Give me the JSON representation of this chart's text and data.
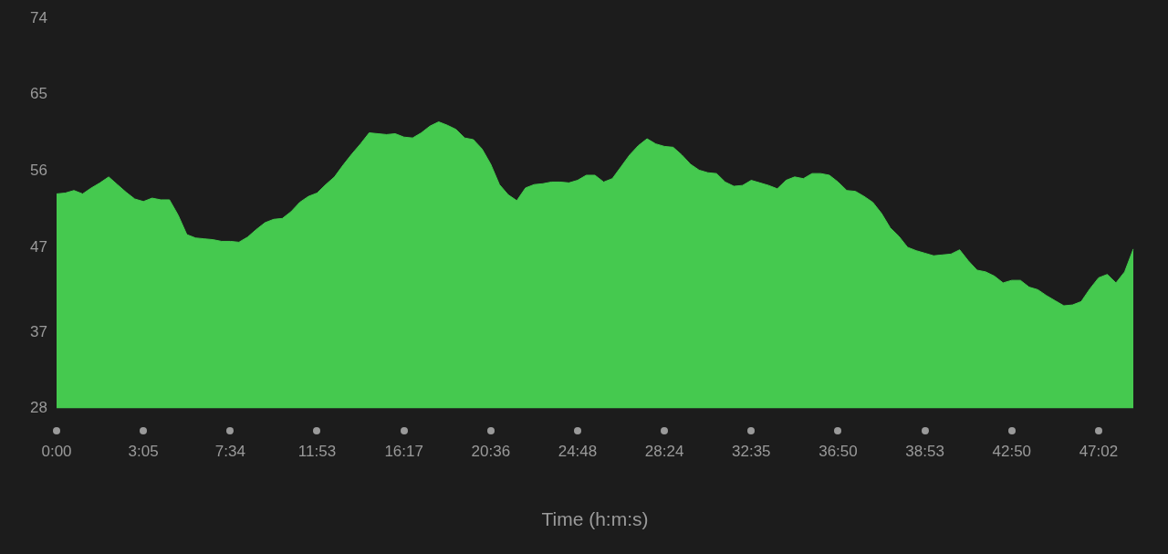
{
  "chart_data": {
    "type": "area",
    "xlabel": "Time (h:m:s)",
    "legend": false,
    "grid": false,
    "marker": "none",
    "categories": [
      "0:00",
      null,
      null,
      null,
      null,
      null,
      null,
      null,
      null,
      null,
      "3:05",
      null,
      null,
      null,
      null,
      null,
      null,
      null,
      null,
      null,
      "7:34",
      null,
      null,
      null,
      null,
      null,
      null,
      null,
      null,
      null,
      "11:53",
      null,
      null,
      null,
      null,
      null,
      null,
      null,
      null,
      null,
      "16:17",
      null,
      null,
      null,
      null,
      null,
      null,
      null,
      null,
      null,
      "20:36",
      null,
      null,
      null,
      null,
      null,
      null,
      null,
      null,
      null,
      "24:48",
      null,
      null,
      null,
      null,
      null,
      null,
      null,
      null,
      null,
      "28:24",
      null,
      null,
      null,
      null,
      null,
      null,
      null,
      null,
      null,
      "32:35",
      null,
      null,
      null,
      null,
      null,
      null,
      null,
      null,
      null,
      "36:50",
      null,
      null,
      null,
      null,
      null,
      null,
      null,
      null,
      null,
      "38:53",
      null,
      null,
      null,
      null,
      null,
      null,
      null,
      null,
      null,
      "42:50",
      null,
      null,
      null,
      null,
      null,
      null,
      null,
      null,
      null,
      "47:02",
      null,
      null,
      null,
      null
    ],
    "ylim": [
      28,
      74
    ],
    "yticks": [
      28,
      37,
      47,
      56,
      65,
      74
    ],
    "series": [
      {
        "color": "#45c94f",
        "values": [
          53.3,
          53.4,
          53.7,
          53.3,
          54.0,
          54.6,
          55.3,
          54.4,
          53.5,
          52.7,
          52.4,
          52.8,
          52.6,
          52.6,
          50.8,
          48.5,
          48.1,
          48.0,
          47.9,
          47.7,
          47.7,
          47.6,
          48.2,
          49.1,
          49.9,
          50.3,
          50.4,
          51.2,
          52.3,
          53.0,
          53.4,
          54.4,
          55.3,
          56.7,
          58.0,
          59.2,
          60.5,
          60.4,
          60.3,
          60.4,
          60.0,
          59.9,
          60.5,
          61.3,
          61.8,
          61.4,
          60.9,
          59.9,
          59.7,
          58.6,
          56.8,
          54.4,
          53.2,
          52.5,
          54.0,
          54.4,
          54.5,
          54.7,
          54.7,
          54.6,
          54.9,
          55.5,
          55.5,
          54.7,
          55.1,
          56.5,
          57.9,
          59.0,
          59.8,
          59.2,
          58.9,
          58.8,
          57.9,
          56.8,
          56.1,
          55.8,
          55.7,
          54.7,
          54.2,
          54.3,
          54.9,
          54.6,
          54.3,
          53.9,
          54.9,
          55.3,
          55.1,
          55.7,
          55.7,
          55.5,
          54.7,
          53.7,
          53.6,
          53.0,
          52.3,
          51.0,
          49.3,
          48.3,
          47.0,
          46.6,
          46.3,
          46.0,
          46.1,
          46.2,
          46.7,
          45.4,
          44.3,
          44.1,
          43.6,
          42.8,
          43.1,
          43.1,
          42.3,
          42.0,
          41.3,
          40.7,
          40.1,
          40.2,
          40.6,
          42.1,
          43.4,
          43.8,
          42.8,
          44.1,
          46.8
        ]
      }
    ]
  }
}
